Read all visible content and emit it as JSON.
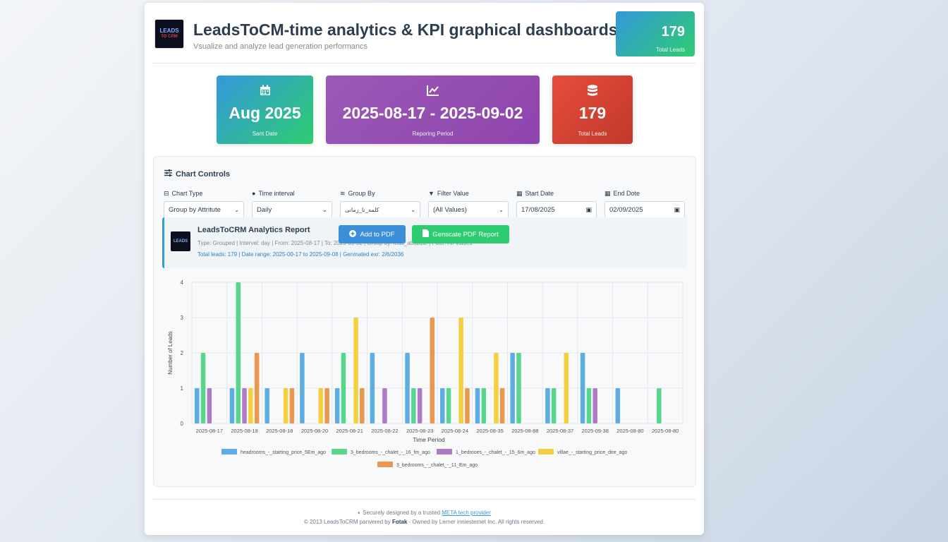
{
  "header": {
    "logo_text": "LEADS",
    "logo_sub": "TO CRM",
    "title": "LeadsToCM-time analytics & KPI graphical dashboards",
    "subtitle": "Vsualize and analyze lead generation performancs",
    "kpi_value": "179",
    "kpi_label": "Total Leads"
  },
  "cards": {
    "start": {
      "value": "Aug 2025",
      "label": "Sant Date",
      "icon": "calendar-icon"
    },
    "period": {
      "value": "2025-08-17 - 2025-09-02",
      "label": "Reporing Period",
      "icon": "chart-line-icon"
    },
    "total": {
      "value": "179",
      "label": "Total Leads",
      "icon": "database-icon"
    }
  },
  "controls": {
    "title": "Chart Controls",
    "chart_type": {
      "label": "Chart Type",
      "value": "Group by Attritute"
    },
    "interval": {
      "label": "Time interval",
      "value": "Daily"
    },
    "group_by": {
      "label": "Group By",
      "value": "کلمه_نا_زمانی"
    },
    "filter": {
      "label": "Filter Value",
      "value": "(All Values)"
    },
    "start_date": {
      "label": "Start Date",
      "value": "17/08/2025"
    },
    "end_date": {
      "label": "End Dote",
      "value": "02/09/2025"
    }
  },
  "report": {
    "logo_text": "LEADS",
    "title": "LeadsToCRM Analytics Report",
    "meta": "Type: Grouped | Intervel: day | From: 2025-08-17 | To: 2025-09-02 | Group by: lead_attribute | Filter: All Values",
    "info": "Total leads: 179 | Date range: 2025-00-17 to 2025-09-08 | Genmated exr: 2/6/2036",
    "add_pdf_label": "Add to PDF",
    "generate_label": "Genscate PDF Report"
  },
  "footer": {
    "line1_prefix": "Securely designed by a trusted",
    "line1_link": "META tech provider",
    "line2_prefix": "© 2013 LeadsToCRM panvered by",
    "line2_bold": "Fotak",
    "line2_suffix": "- Owned by Lerner inniestemet Inc. All rights reserved."
  },
  "chart_data": {
    "type": "bar",
    "xlabel": "Time Period",
    "ylabel": "Number of Leads",
    "ylim": [
      0,
      4
    ],
    "yticks": [
      0,
      1,
      2,
      3,
      4
    ],
    "grid": true,
    "legend_position": "bottom",
    "categories": [
      "2025-08-17",
      "2025-08-18",
      "2025-08-18",
      "2025-08-20",
      "2025-08-21",
      "2025-08-22",
      "2025-08-23",
      "2025-08-24",
      "2025-08-35",
      "2025-08-88",
      "2025-08-37",
      "2025-09-38",
      "2025-08-80",
      "2025-08-80"
    ],
    "series": [
      {
        "name": "headrooms_-_starting_price_5Em_ago",
        "color": "#5dade2",
        "values": [
          1,
          1,
          1,
          2,
          1,
          2,
          2,
          1,
          1,
          2,
          1,
          2,
          1,
          0
        ]
      },
      {
        "name": "3_bedrooms_-_chalet_-_16_fm_ago",
        "color": "#58d68d",
        "values": [
          2,
          4,
          0,
          0,
          2,
          0,
          1,
          1,
          1,
          2,
          1,
          1,
          0,
          1
        ]
      },
      {
        "name": "1_bedrooes_-_chalet_-_15_6m_ago",
        "color": "#af7ac5",
        "values": [
          1,
          1,
          0,
          0,
          0,
          1,
          1,
          0,
          0,
          0,
          0,
          1,
          0,
          0
        ]
      },
      {
        "name": "villae_-_starting_price_dire_ago",
        "color": "#f4d03f",
        "values": [
          0,
          1,
          1,
          1,
          3,
          0,
          0,
          3,
          2,
          0,
          2,
          0,
          0,
          0
        ]
      },
      {
        "name": "3_bedrooms_-_chalet_-_11_Em_ago",
        "color": "#eb984e",
        "values": [
          0,
          2,
          1,
          1,
          1,
          0,
          3,
          1,
          1,
          0,
          0,
          0,
          0,
          0
        ]
      }
    ]
  }
}
